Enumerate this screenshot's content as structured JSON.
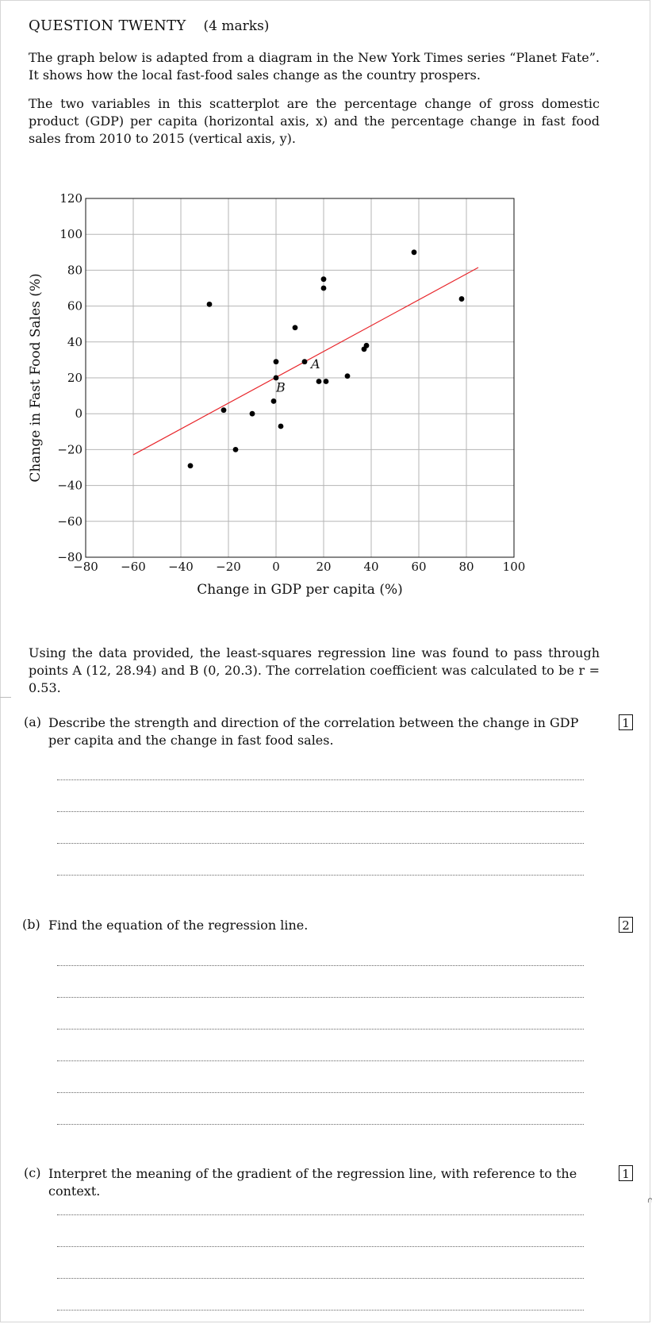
{
  "question": {
    "title": "QUESTION TWENTY",
    "marks": "(4 marks)",
    "intro_1": "The graph below is adapted from a diagram in the New York Times series “Planet Fate”. It shows how the local fast-food sales change as the country prospers.",
    "intro_2": "The two variables in this scatterplot are the percentage change of gross domestic product (GDP) per capita (horizontal axis, x) and the percentage change in fast food sales from 2010 to 2015 (vertical axis, y).",
    "regression_info": "Using the data provided, the least-squares regression line was found to pass through points A (12, 28.94) and B (0, 20.3). The correlation coefficient was calculated to be r = 0.53."
  },
  "chart_data": {
    "type": "scatter",
    "xlabel": "Change in GDP per capita (%)",
    "ylabel": "Change in Fast Food Sales (%)",
    "xlim": [
      -80,
      100
    ],
    "ylim": [
      -80,
      120
    ],
    "xticks": [
      -80,
      -60,
      -40,
      -20,
      0,
      20,
      40,
      60,
      80,
      100
    ],
    "yticks": [
      -80,
      -60,
      -40,
      -20,
      0,
      20,
      40,
      60,
      80,
      100,
      120
    ],
    "xtick_labels": [
      "−80",
      "−60",
      "−40",
      "−20",
      "0",
      "20",
      "40",
      "60",
      "80",
      "100"
    ],
    "ytick_labels": [
      "−80",
      "−60",
      "−40",
      "−20",
      "0",
      "20",
      "40",
      "60",
      "80",
      "100",
      "120"
    ],
    "grid": true,
    "points": [
      {
        "x": -36,
        "y": -29
      },
      {
        "x": -28,
        "y": 61
      },
      {
        "x": -22,
        "y": 2
      },
      {
        "x": -17,
        "y": -20
      },
      {
        "x": -10,
        "y": 0
      },
      {
        "x": -1,
        "y": 7
      },
      {
        "x": 0,
        "y": 20
      },
      {
        "x": 0,
        "y": 29
      },
      {
        "x": 2,
        "y": -7
      },
      {
        "x": 8,
        "y": 48
      },
      {
        "x": 12,
        "y": 29
      },
      {
        "x": 18,
        "y": 18
      },
      {
        "x": 20,
        "y": 75
      },
      {
        "x": 20,
        "y": 70
      },
      {
        "x": 21,
        "y": 18
      },
      {
        "x": 30,
        "y": 21
      },
      {
        "x": 37,
        "y": 36
      },
      {
        "x": 38,
        "y": 38
      },
      {
        "x": 58,
        "y": 90
      },
      {
        "x": 78,
        "y": 64
      }
    ],
    "regression_line": {
      "x1": -60,
      "x2": 85,
      "slope": 0.72,
      "intercept": 20.3,
      "color": "#e8262b"
    },
    "annotations": [
      {
        "label": "A",
        "x": 12,
        "y": 28.94
      },
      {
        "label": "B",
        "x": 0,
        "y": 20.3
      }
    ]
  },
  "parts": [
    {
      "label": "(a)",
      "text": "Describe the strength and direction of the correlation between the change in GDP per capita and the change in fast food sales.",
      "marks": "1"
    },
    {
      "label": "(b)",
      "text": "Find the equation of the regression line.",
      "marks": "2"
    },
    {
      "label": "(c)",
      "text": "Interpret the meaning of the gradient of the regression line, with reference to the context.",
      "marks": "1"
    }
  ],
  "stray_mark": "∩"
}
